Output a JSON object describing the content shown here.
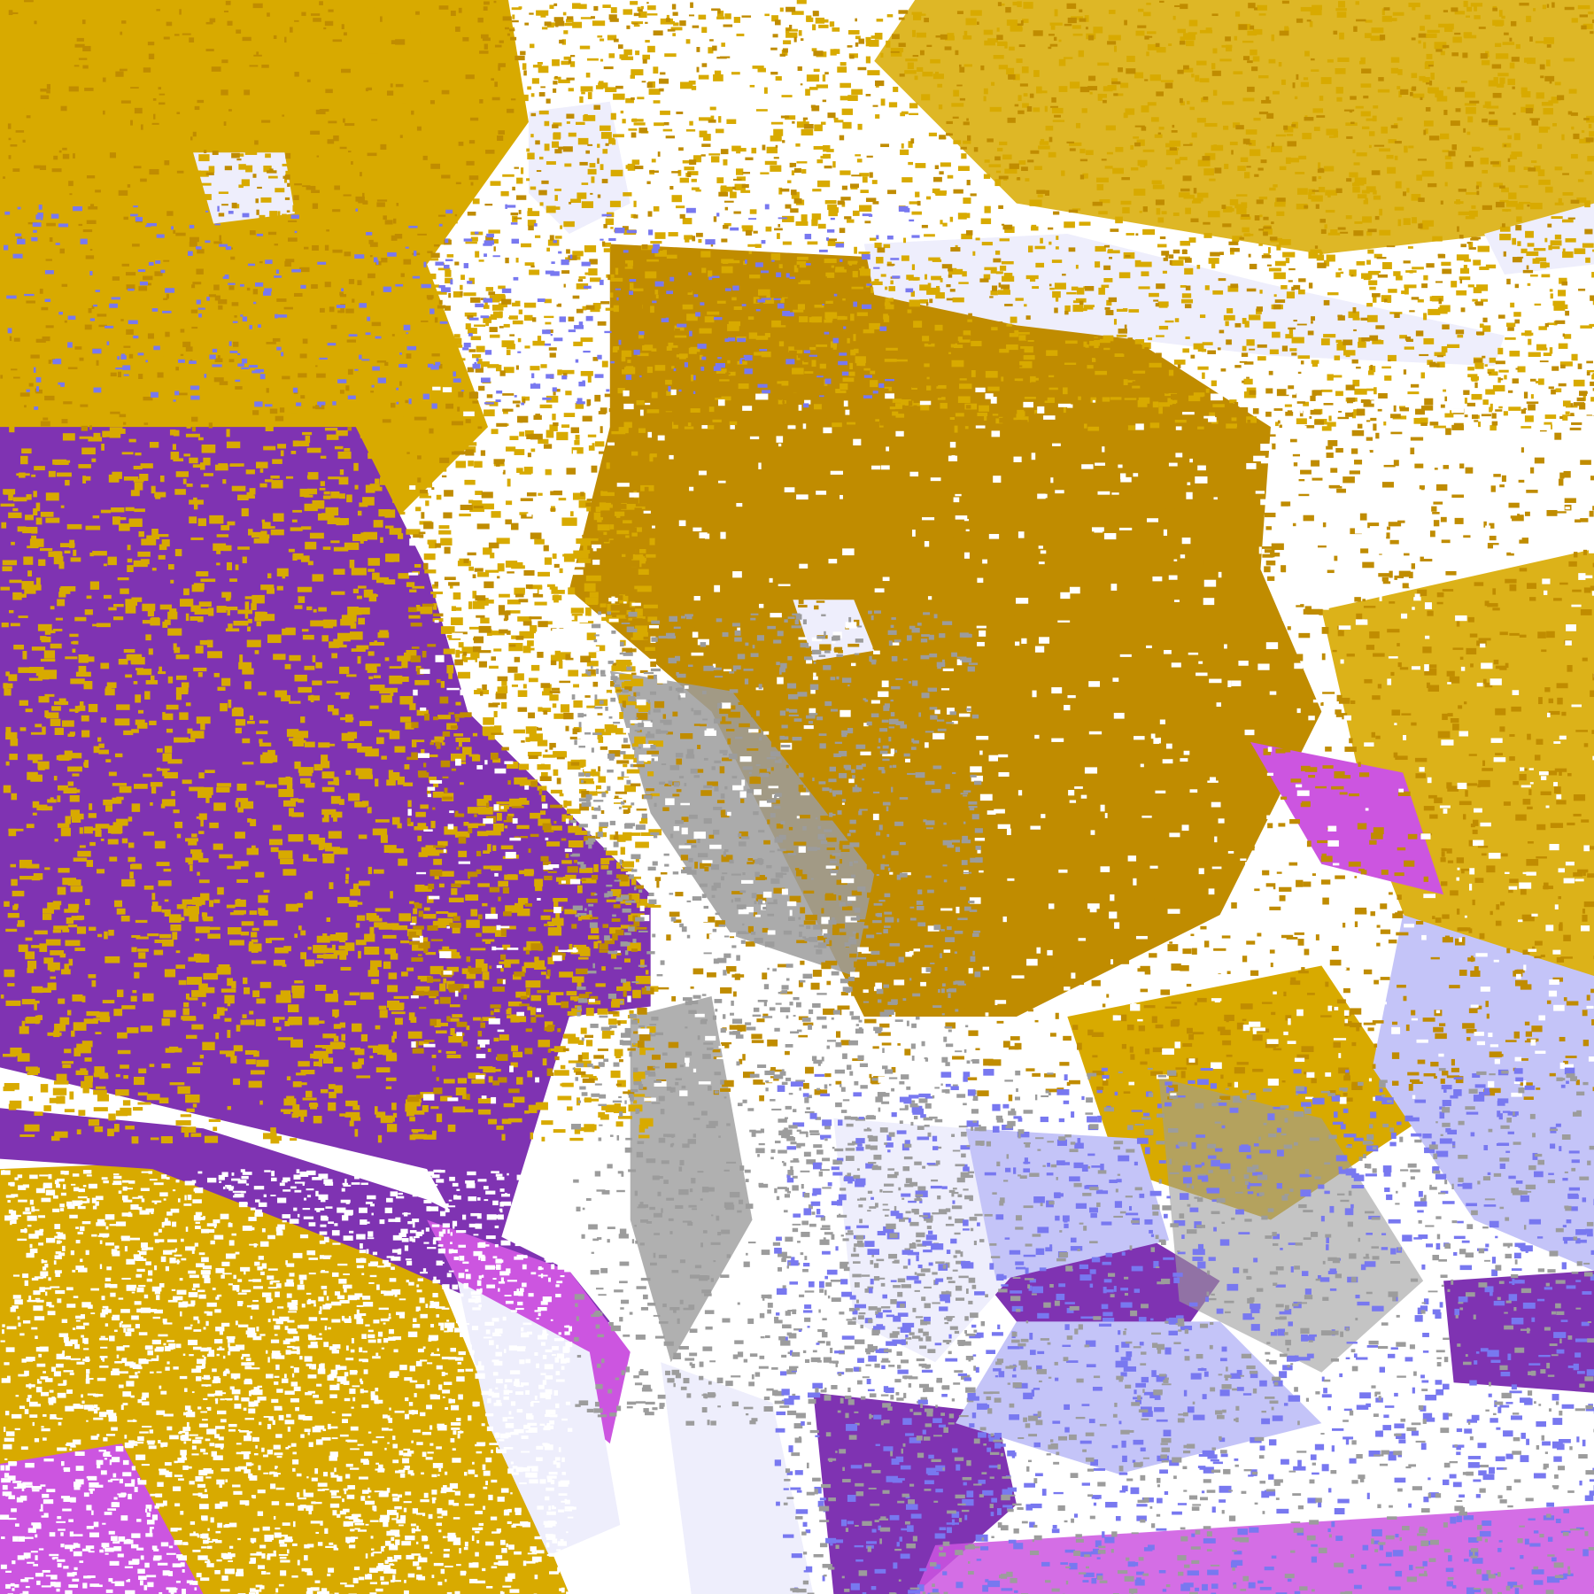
{
  "map": {
    "kind": "satellite cloud classification",
    "palette": {
      "clear": "#ffffff",
      "gold": "#d8aa00",
      "dark_gold": "#c08c00",
      "purple": "#7f33b2",
      "magenta": "#cc55e0",
      "periwinkle": "#7878f0",
      "lavender": "#c4c4f8",
      "pale_lavender": "#eeeefc",
      "gray": "#9c9c9c"
    }
  }
}
